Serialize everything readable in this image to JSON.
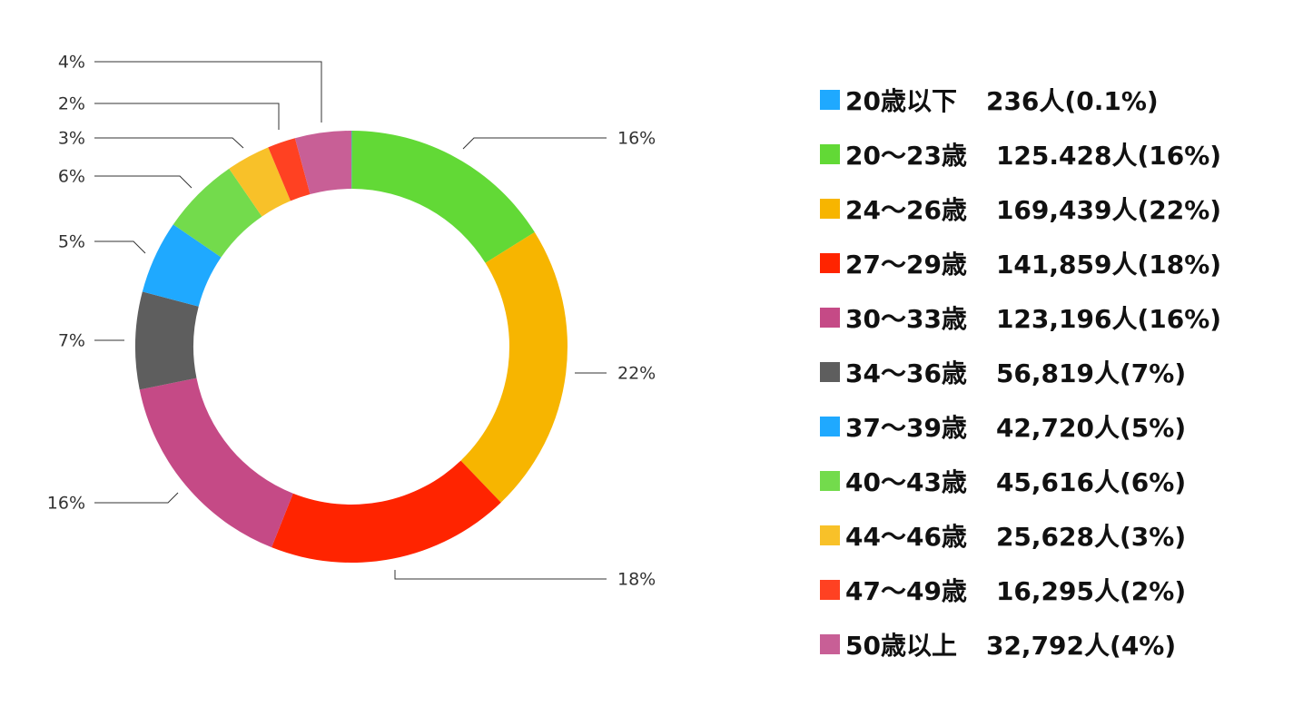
{
  "chart_data": {
    "type": "pie",
    "subtype": "donut",
    "legend_position": "right",
    "slices": [
      {
        "legend_name": "20歳以下",
        "legend_count": "236人(0.1%)",
        "value": 236,
        "percent": 0.1,
        "label": "",
        "color": "#1FA9FF"
      },
      {
        "legend_name": "20〜23歳",
        "legend_count": "125.428人(16%)",
        "value": 125428,
        "percent": 16,
        "label": "16%",
        "color": "#62D936"
      },
      {
        "legend_name": "24〜26歳",
        "legend_count": "169,439人(22%)",
        "value": 169439,
        "percent": 22,
        "label": "22%",
        "color": "#F7B500"
      },
      {
        "legend_name": "27〜29歳",
        "legend_count": "141,859人(18%)",
        "value": 141859,
        "percent": 18,
        "label": "18%",
        "color": "#FF2400"
      },
      {
        "legend_name": "30〜33歳",
        "legend_count": "123,196人(16%)",
        "value": 123196,
        "percent": 16,
        "label": "16%",
        "color": "#C54A86"
      },
      {
        "legend_name": "34〜36歳",
        "legend_count": "56,819人(7%)",
        "value": 56819,
        "percent": 7,
        "label": "7%",
        "color": "#5E5E5E"
      },
      {
        "legend_name": "37〜39歳",
        "legend_count": "42,720人(5%)",
        "value": 42720,
        "percent": 5,
        "label": "5%",
        "color": "#1FA9FF"
      },
      {
        "legend_name": "40〜43歳",
        "legend_count": "45,616人(6%)",
        "value": 45616,
        "percent": 6,
        "label": "6%",
        "color": "#73DB4C"
      },
      {
        "legend_name": "44〜46歳",
        "legend_count": "25,628人(3%)",
        "value": 25628,
        "percent": 3,
        "label": "3%",
        "color": "#F8C129"
      },
      {
        "legend_name": "47〜49歳",
        "legend_count": "16,295人(2%)",
        "value": 16295,
        "percent": 2,
        "label": "2%",
        "color": "#FF4122"
      },
      {
        "legend_name": "50歳以上",
        "legend_count": "32,792人(4%)",
        "value": 32792,
        "percent": 4,
        "label": "4%",
        "color": "#C85F96"
      }
    ]
  }
}
